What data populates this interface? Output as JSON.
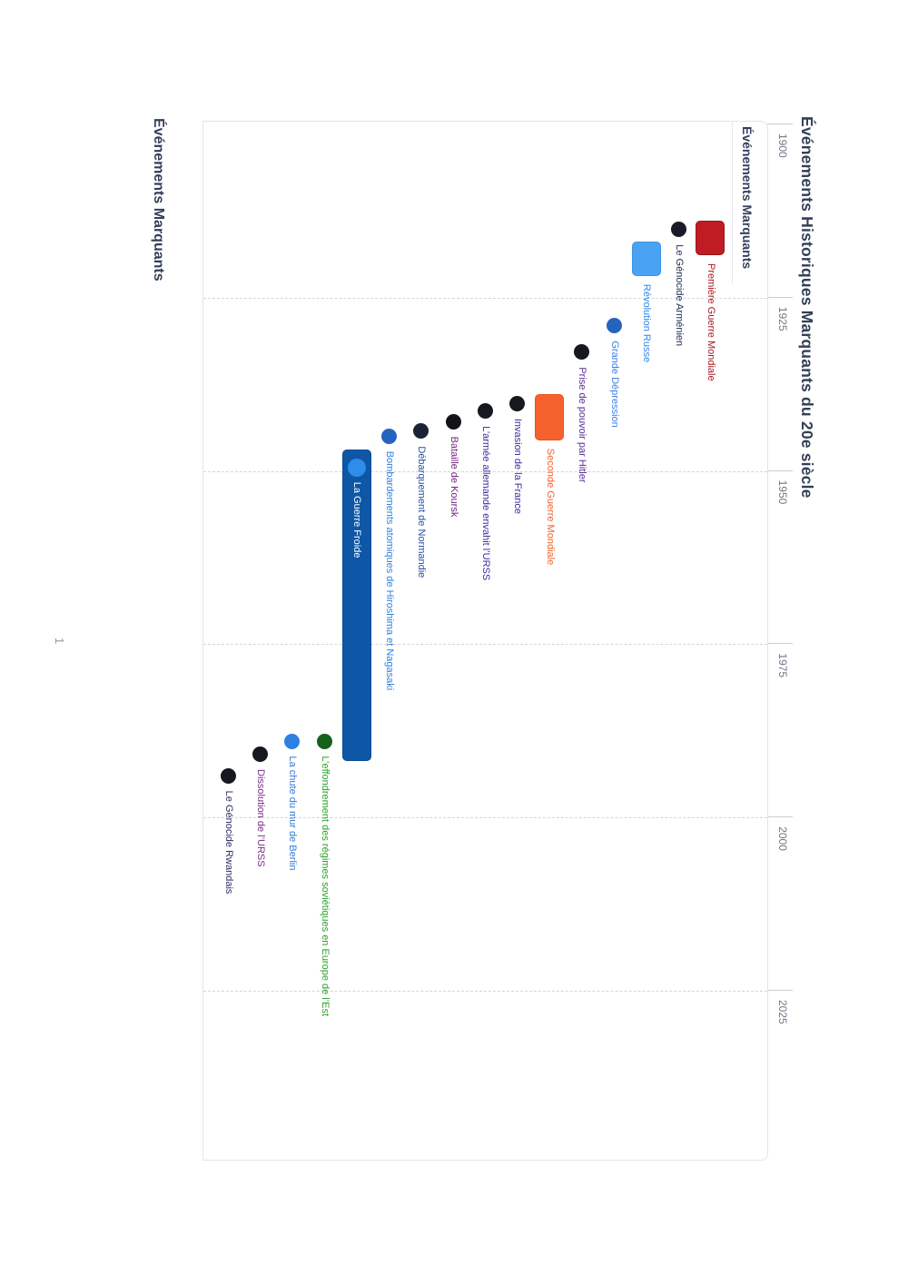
{
  "title": "Événements Historiques Marquants du 20e siècle",
  "legend_title": "Événements Marquants",
  "section_heading": "Événements Marquants",
  "page": {
    "number": "1"
  },
  "colors": {
    "title_text": "#333f57",
    "axis_label": "#6e7787",
    "grid_dash": "#d2d6db",
    "panel_border": "#e3e5e9",
    "background": "#ffffff"
  },
  "chart_data": {
    "type": "timeline",
    "title": "Événements Historiques Marquants du 20e siècle",
    "legend_title": "Événements Marquants",
    "orientation": "chart rotated 90° clockwise on portrait page",
    "x_axis": {
      "ticks": [
        1900,
        1925,
        1950,
        1975,
        2000,
        2025
      ],
      "range": [
        1900,
        2049
      ],
      "side": "top",
      "grid": "dashed"
    },
    "events": [
      {
        "label": "Première Guerre Mondiale",
        "type": "range",
        "start": 1914,
        "end": 1919,
        "bar_color": "#bf1c23",
        "border_color": "#9d151b",
        "label_color": "#a81a1f"
      },
      {
        "label": "Le Génocide Arménien",
        "type": "point",
        "year": 1915.3,
        "dot_color": "#181c27",
        "label_color": "#242e52"
      },
      {
        "label": "Révolution Russe",
        "type": "range",
        "start": 1917,
        "end": 1922,
        "bar_color": "#4aa2f3",
        "border_color": "#3d94e6",
        "label_color": "#2f86eb"
      },
      {
        "label": "Grande Dépression",
        "type": "point",
        "year": 1929.2,
        "dot_color": "#2563c0",
        "label_color": "#3b82e0"
      },
      {
        "label": "Prise de pouvoir par Hitler",
        "type": "point",
        "year": 1933,
        "dot_color": "#15181f",
        "label_color": "#5b2d91"
      },
      {
        "label": "Seconde Guerre Mondiale",
        "type": "range",
        "start": 1939,
        "end": 1945.7,
        "bar_color": "#f5622e",
        "border_color": "#ea521e",
        "label_color": "#f4622f"
      },
      {
        "label": "Invasion de la France",
        "type": "point",
        "year": 1940.4,
        "dot_color": "#15181f",
        "label_color": "#43289e"
      },
      {
        "label": "L’armée allemande envahit l’URSS",
        "type": "point",
        "year": 1941.5,
        "dot_color": "#15181f",
        "label_color": "#43289e"
      },
      {
        "label": "Bataille de Koursk",
        "type": "point",
        "year": 1943,
        "dot_color": "#121419",
        "label_color": "#742282"
      },
      {
        "label": "Débarquement de Normandie",
        "type": "point",
        "year": 1944.4,
        "dot_color": "#1a2336",
        "label_color": "#27509f"
      },
      {
        "label": "Bombardements atomiques de Hiroshima et Nagasaki",
        "type": "point",
        "year": 1945.1,
        "dot_color": "#2563c0",
        "label_color": "#2f7fe0"
      },
      {
        "label": "La Guerre Froide",
        "type": "range",
        "start": 1947,
        "end": 1992,
        "bar_color": "#0d57a6",
        "border_color": "#0a4c95",
        "label_color": "#ffffff",
        "label_inside": true,
        "marker_dot_color": "#2f8ceb"
      },
      {
        "label": "L’effondrement des régimes soviétiques en Europe de l’Est",
        "type": "point",
        "year": 1989.1,
        "dot_color": "#15611c",
        "label_color": "#28a228"
      },
      {
        "label": "La chute du mur de Berlin",
        "type": "point",
        "year": 1989.1,
        "dot_color": "#2e7fe2",
        "label_color": "#3178d8"
      },
      {
        "label": "Dissolution de l’URSS",
        "type": "point",
        "year": 1991,
        "dot_color": "#15181f",
        "label_color": "#7b2b8a"
      },
      {
        "label": "Le Génocide Rwandais",
        "type": "point",
        "year": 1994.1,
        "dot_color": "#15181f",
        "label_color": "#2a3060"
      }
    ]
  }
}
